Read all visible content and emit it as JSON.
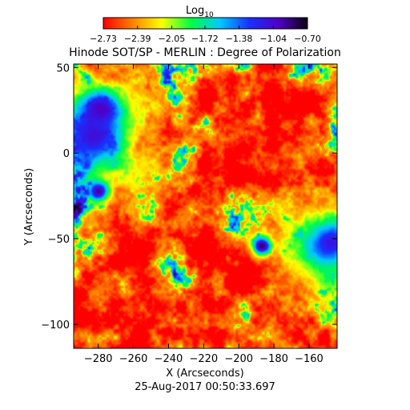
{
  "chart_data": {
    "type": "heatmap",
    "title": "Hinode SOT/SP - MERLIN : Degree of Polarization",
    "colorbar": {
      "label_base": "Log",
      "label_sub": "10",
      "tick_labels": [
        "-2.73",
        "-2.39",
        "-2.05",
        "-1.72",
        "-1.38",
        "-1.04",
        "-0.70"
      ],
      "ticks": [
        -2.73,
        -2.39,
        -2.05,
        -1.72,
        -1.38,
        -1.04,
        -0.7
      ],
      "range": [
        -2.73,
        -0.7
      ],
      "colors": [
        "#ff0000",
        "#ff8000",
        "#ffff00",
        "#00ff40",
        "#00c8ff",
        "#1830ff",
        "#5000c8",
        "#0a0010"
      ]
    },
    "xlabel": "X (Arcseconds)",
    "ylabel": "Y (Arcseconds)",
    "xlim": [
      -294,
      -144
    ],
    "ylim": [
      -114,
      52
    ],
    "x_ticks": [
      -280,
      -260,
      -240,
      -220,
      -200,
      -180,
      -160
    ],
    "y_ticks": [
      50,
      0,
      -50,
      -100
    ],
    "x_tick_labels": [
      "−280",
      "−260",
      "−240",
      "−220",
      "−200",
      "−180",
      "−160"
    ],
    "y_tick_labels": [
      "50",
      "0",
      "−50",
      "−100"
    ],
    "features": [
      {
        "kind": "sunspot",
        "x": -279,
        "y": 25,
        "radius": 7,
        "level": -0.7
      },
      {
        "kind": "sunspot",
        "x": -283,
        "y": 10,
        "radius": 7,
        "level": -0.72
      },
      {
        "kind": "sunspot",
        "x": -280,
        "y": -22,
        "radius": 4,
        "level": -0.8
      },
      {
        "kind": "sunspot",
        "x": -187,
        "y": -54,
        "radius": 4,
        "level": -0.78
      },
      {
        "kind": "sunspot",
        "x": -148,
        "y": -52,
        "radius": 6,
        "level": -0.72
      },
      {
        "kind": "plage",
        "x": -284,
        "y": 10,
        "radius": 22,
        "level": -1.2
      },
      {
        "kind": "plage",
        "x": -150,
        "y": -55,
        "radius": 18,
        "level": -1.25
      }
    ],
    "background_level": -2.55,
    "timestamp": "25-Aug-2017 00:50:33.697"
  }
}
